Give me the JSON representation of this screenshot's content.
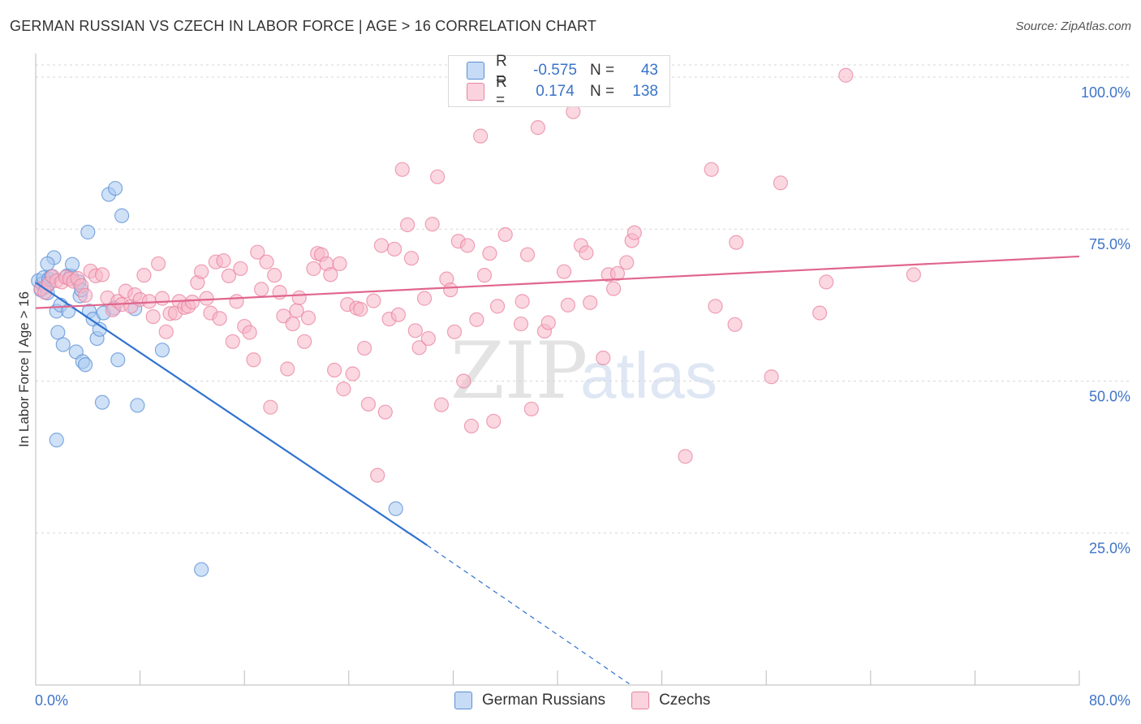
{
  "header": {
    "title": "GERMAN RUSSIAN VS CZECH IN LABOR FORCE | AGE > 16 CORRELATION CHART",
    "source": "Source: ZipAtlas.com"
  },
  "watermark": {
    "zip": "ZIP",
    "atlas": "atlas"
  },
  "legend": {
    "rows": [
      {
        "r_label": "R =",
        "r_value": "-0.575",
        "n_label": "N =",
        "n_value": "43",
        "color": "#a8c8f0"
      },
      {
        "r_label": "R =",
        "r_value": "0.174",
        "n_label": "N =",
        "n_value": "138",
        "color": "#f7b6c9"
      }
    ]
  },
  "chart_data": {
    "type": "scatter",
    "title": "GERMAN RUSSIAN VS CZECH IN LABOR FORCE | AGE > 16 CORRELATION CHART",
    "xlabel": "",
    "ylabel": "In Labor Force | Age > 16",
    "xlim": [
      0,
      80
    ],
    "ylim": [
      0,
      102
    ],
    "x_tick_labels": [
      "0.0%",
      "80.0%"
    ],
    "y_ticks": [
      25,
      50,
      75,
      100
    ],
    "y_tick_labels": [
      "25.0%",
      "50.0%",
      "75.0%",
      "100.0%"
    ],
    "grid": "horizontal dashed",
    "legend_position": "bottom-center",
    "series": [
      {
        "name": "German Russians",
        "color": "#5b8fd6",
        "fill": "#a8c8f0",
        "r": -0.575,
        "n": 43,
        "trend": {
          "x0": 0,
          "y0": 66.2,
          "x1": 30,
          "y1": 23.0,
          "dashed_to_x": 45.5,
          "dashed_to_y": 0.2
        },
        "points": [
          [
            0.2,
            66.5
          ],
          [
            0.4,
            65.0
          ],
          [
            0.5,
            66.0
          ],
          [
            0.6,
            67.0
          ],
          [
            0.8,
            65.5
          ],
          [
            0.9,
            64.5
          ],
          [
            1.0,
            66.8
          ],
          [
            1.2,
            67.2
          ],
          [
            1.4,
            70.3
          ],
          [
            0.9,
            69.3
          ],
          [
            1.6,
            61.5
          ],
          [
            1.7,
            58.0
          ],
          [
            1.9,
            62.5
          ],
          [
            2.1,
            56.0
          ],
          [
            2.4,
            67.3
          ],
          [
            2.5,
            61.5
          ],
          [
            2.7,
            67.3
          ],
          [
            2.8,
            69.2
          ],
          [
            3.1,
            54.8
          ],
          [
            3.3,
            66.3
          ],
          [
            3.4,
            64.0
          ],
          [
            3.6,
            53.2
          ],
          [
            3.8,
            52.7
          ],
          [
            4.1,
            61.5
          ],
          [
            4.4,
            60.2
          ],
          [
            4.7,
            57.0
          ],
          [
            4.9,
            58.5
          ],
          [
            5.2,
            61.2
          ],
          [
            6.0,
            62.0
          ],
          [
            3.5,
            65.0
          ],
          [
            4.0,
            74.5
          ],
          [
            5.6,
            80.7
          ],
          [
            6.1,
            81.7
          ],
          [
            6.6,
            77.2
          ],
          [
            6.3,
            53.5
          ],
          [
            5.1,
            46.5
          ],
          [
            7.8,
            46.0
          ],
          [
            7.6,
            61.9
          ],
          [
            9.7,
            55.1
          ],
          [
            1.6,
            40.3
          ],
          [
            12.7,
            19.0
          ],
          [
            27.6,
            29.0
          ],
          [
            1.0,
            66.0
          ]
        ]
      },
      {
        "name": "Czechs",
        "color": "#e8849f",
        "fill": "#f7b6c9",
        "r": 0.174,
        "n": 138,
        "trend": {
          "x0": 0,
          "y0": 62.0,
          "x1": 80,
          "y1": 70.5
        },
        "points": [
          [
            0.4,
            65.2
          ],
          [
            0.7,
            64.6
          ],
          [
            1.0,
            66.0
          ],
          [
            1.3,
            67.2
          ],
          [
            1.6,
            66.5
          ],
          [
            2.0,
            66.3
          ],
          [
            2.3,
            67.1
          ],
          [
            2.6,
            66.8
          ],
          [
            2.9,
            66.4
          ],
          [
            3.2,
            66.9
          ],
          [
            3.5,
            65.7
          ],
          [
            3.8,
            64.1
          ],
          [
            4.2,
            68.1
          ],
          [
            4.6,
            67.3
          ],
          [
            5.1,
            67.5
          ],
          [
            5.5,
            63.7
          ],
          [
            5.9,
            61.7
          ],
          [
            6.3,
            63.1
          ],
          [
            6.6,
            62.6
          ],
          [
            6.9,
            64.8
          ],
          [
            7.3,
            62.3
          ],
          [
            7.6,
            64.2
          ],
          [
            8.0,
            63.4
          ],
          [
            8.3,
            67.4
          ],
          [
            8.7,
            63.1
          ],
          [
            9.0,
            60.6
          ],
          [
            9.4,
            69.3
          ],
          [
            9.7,
            63.6
          ],
          [
            10.0,
            58.1
          ],
          [
            10.3,
            61.1
          ],
          [
            10.7,
            61.2
          ],
          [
            11.0,
            63.1
          ],
          [
            11.4,
            62.1
          ],
          [
            11.7,
            62.3
          ],
          [
            12.0,
            63.0
          ],
          [
            12.4,
            66.2
          ],
          [
            12.7,
            68.0
          ],
          [
            13.1,
            63.6
          ],
          [
            13.4,
            61.2
          ],
          [
            13.8,
            69.6
          ],
          [
            14.1,
            60.3
          ],
          [
            14.4,
            69.8
          ],
          [
            14.8,
            67.3
          ],
          [
            15.1,
            56.5
          ],
          [
            15.4,
            63.1
          ],
          [
            15.7,
            68.5
          ],
          [
            16.0,
            59.0
          ],
          [
            16.4,
            58.0
          ],
          [
            16.7,
            53.5
          ],
          [
            17.0,
            71.2
          ],
          [
            17.3,
            65.1
          ],
          [
            17.7,
            69.6
          ],
          [
            18.0,
            45.7
          ],
          [
            18.3,
            67.4
          ],
          [
            18.7,
            64.6
          ],
          [
            19.0,
            60.7
          ],
          [
            19.3,
            52.0
          ],
          [
            19.7,
            59.4
          ],
          [
            20.0,
            61.6
          ],
          [
            20.2,
            63.7
          ],
          [
            20.6,
            56.5
          ],
          [
            20.9,
            60.4
          ],
          [
            21.3,
            68.5
          ],
          [
            21.6,
            71.0
          ],
          [
            21.9,
            70.8
          ],
          [
            22.3,
            69.3
          ],
          [
            22.6,
            67.5
          ],
          [
            22.9,
            51.8
          ],
          [
            23.3,
            69.3
          ],
          [
            23.6,
            48.7
          ],
          [
            23.9,
            62.6
          ],
          [
            24.3,
            51.2
          ],
          [
            24.6,
            62.0
          ],
          [
            24.9,
            61.8
          ],
          [
            25.2,
            55.4
          ],
          [
            25.5,
            46.2
          ],
          [
            25.9,
            63.2
          ],
          [
            26.2,
            34.5
          ],
          [
            26.5,
            72.3
          ],
          [
            26.8,
            44.9
          ],
          [
            27.1,
            60.2
          ],
          [
            27.5,
            71.7
          ],
          [
            27.8,
            60.9
          ],
          [
            28.1,
            84.8
          ],
          [
            28.5,
            75.7
          ],
          [
            28.8,
            70.2
          ],
          [
            29.1,
            58.3
          ],
          [
            29.4,
            55.5
          ],
          [
            29.8,
            63.6
          ],
          [
            30.1,
            57.0
          ],
          [
            30.4,
            75.8
          ],
          [
            30.8,
            83.6
          ],
          [
            31.1,
            46.1
          ],
          [
            31.5,
            66.8
          ],
          [
            31.8,
            65.0
          ],
          [
            32.1,
            58.1
          ],
          [
            32.4,
            73.0
          ],
          [
            32.8,
            50.0
          ],
          [
            33.1,
            72.3
          ],
          [
            33.4,
            42.6
          ],
          [
            33.8,
            60.1
          ],
          [
            34.1,
            90.3
          ],
          [
            34.4,
            67.4
          ],
          [
            34.8,
            71.0
          ],
          [
            35.1,
            43.4
          ],
          [
            35.4,
            62.3
          ],
          [
            36.0,
            74.1
          ],
          [
            37.2,
            59.4
          ],
          [
            37.3,
            63.1
          ],
          [
            37.7,
            70.8
          ],
          [
            38.0,
            45.4
          ],
          [
            38.5,
            91.7
          ],
          [
            39.0,
            58.2
          ],
          [
            39.3,
            59.6
          ],
          [
            40.5,
            68.0
          ],
          [
            40.8,
            62.5
          ],
          [
            41.2,
            94.3
          ],
          [
            41.8,
            72.3
          ],
          [
            42.2,
            71.1
          ],
          [
            42.5,
            62.9
          ],
          [
            43.5,
            53.8
          ],
          [
            43.9,
            67.5
          ],
          [
            44.3,
            65.2
          ],
          [
            44.6,
            67.7
          ],
          [
            45.3,
            69.5
          ],
          [
            45.7,
            73.1
          ],
          [
            45.9,
            74.4
          ],
          [
            49.8,
            37.6
          ],
          [
            51.8,
            84.8
          ],
          [
            52.1,
            62.3
          ],
          [
            53.7,
            72.8
          ],
          [
            53.6,
            59.3
          ],
          [
            56.4,
            50.7
          ],
          [
            57.1,
            82.6
          ],
          [
            60.1,
            61.2
          ],
          [
            60.6,
            66.3
          ],
          [
            62.1,
            100.3
          ],
          [
            67.3,
            67.5
          ]
        ]
      }
    ]
  },
  "bottom_legend": [
    {
      "label": "German Russians",
      "color": "#a8c8f0",
      "border": "#5b8fd6"
    },
    {
      "label": "Czechs",
      "color": "#f7b6c9",
      "border": "#e8849f"
    }
  ]
}
